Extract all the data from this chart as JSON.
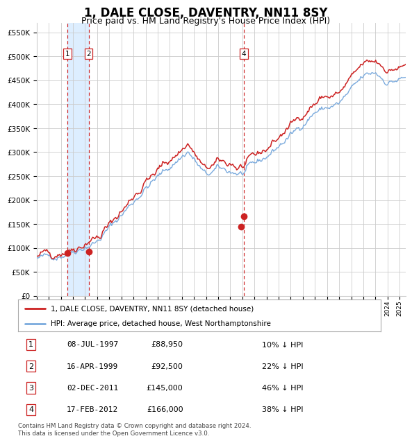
{
  "title": "1, DALE CLOSE, DAVENTRY, NN11 8SY",
  "subtitle": "Price paid vs. HM Land Registry's House Price Index (HPI)",
  "title_fontsize": 12,
  "subtitle_fontsize": 9,
  "ylim": [
    0,
    570000
  ],
  "yticks": [
    0,
    50000,
    100000,
    150000,
    200000,
    250000,
    300000,
    350000,
    400000,
    450000,
    500000,
    550000
  ],
  "background_color": "#ffffff",
  "grid_color": "#cccccc",
  "hpi_line_color": "#7aaadd",
  "price_line_color": "#cc2222",
  "transaction_marker_color": "#cc2222",
  "transaction_dot_size": 7,
  "transactions": [
    {
      "label": "1",
      "date_num": 1997.52,
      "price": 88950
    },
    {
      "label": "2",
      "date_num": 1999.29,
      "price": 92500
    },
    {
      "label": "3",
      "date_num": 2011.92,
      "price": 145000
    },
    {
      "label": "4",
      "date_num": 2012.12,
      "price": 166000
    }
  ],
  "highlight_band_1": [
    1997.52,
    1999.29
  ],
  "highlight_band_color": "#ddeeff",
  "vline_dates": [
    1997.52,
    1999.29,
    2012.12
  ],
  "vline_color": "#cc2222",
  "box_labels": [
    {
      "label": "1",
      "date_num": 1997.52
    },
    {
      "label": "2",
      "date_num": 1999.29
    },
    {
      "label": "4",
      "date_num": 2012.12
    }
  ],
  "legend_items": [
    {
      "label": "1, DALE CLOSE, DAVENTRY, NN11 8SY (detached house)",
      "color": "#cc2222"
    },
    {
      "label": "HPI: Average price, detached house, West Northamptonshire",
      "color": "#7aaadd"
    }
  ],
  "table_rows": [
    {
      "num": "1",
      "date": "08-JUL-1997",
      "price": "£88,950",
      "pct": "10% ↓ HPI"
    },
    {
      "num": "2",
      "date": "16-APR-1999",
      "price": "£92,500",
      "pct": "22% ↓ HPI"
    },
    {
      "num": "3",
      "date": "02-DEC-2011",
      "price": "£145,000",
      "pct": "46% ↓ HPI"
    },
    {
      "num": "4",
      "date": "17-FEB-2012",
      "price": "£166,000",
      "pct": "38% ↓ HPI"
    }
  ],
  "footnote": "Contains HM Land Registry data © Crown copyright and database right 2024.\nThis data is licensed under the Open Government Licence v3.0.",
  "xmin": 1995.0,
  "xmax": 2025.5
}
